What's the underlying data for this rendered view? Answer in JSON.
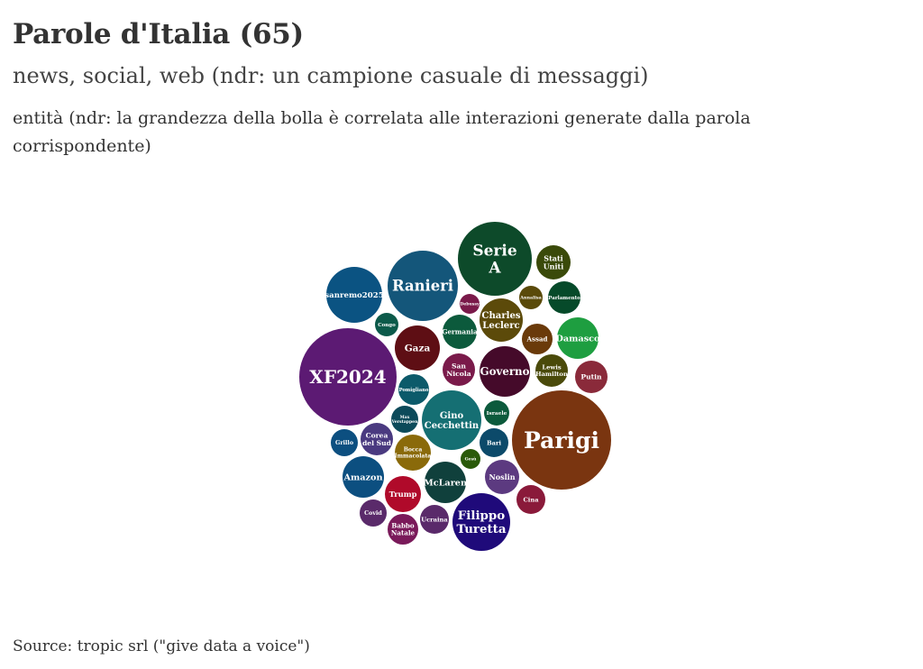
{
  "title": "Parole d'Italia (65)",
  "subtitle": "news, social, web (ndr: un campione casuale di messaggi)",
  "description": "entità (ndr: la grandezza della bolla è correlata alle interazioni generate dalla parola corrispondente)",
  "source": "Source: tropic srl (\"give data a voice\")",
  "chart_data": {
    "type": "bubble",
    "bubbles": [
      {
        "label": "Parigi",
        "size": 55,
        "color": "#7a3510"
      },
      {
        "label": "XF2024",
        "size": 54,
        "color": "#5c1a73"
      },
      {
        "label": "Ranieri",
        "size": 39,
        "color": "#14567a"
      },
      {
        "label": "Serie A",
        "size": 41,
        "color": "#0d4a2a"
      },
      {
        "label": "sanremo2025",
        "size": 31,
        "color": "#0b5382"
      },
      {
        "label": "Filippo Turetta",
        "size": 32,
        "color": "#1f0a7a"
      },
      {
        "label": "Gino Cecchettin",
        "size": 33,
        "color": "#156f73"
      },
      {
        "label": "Governo",
        "size": 28,
        "color": "#450a2a"
      },
      {
        "label": "Gaza",
        "size": 25,
        "color": "#5e0e14"
      },
      {
        "label": "Charles Leclerc",
        "size": 24,
        "color": "#5c4a0a"
      },
      {
        "label": "Damasco",
        "size": 23,
        "color": "#1e9e40"
      },
      {
        "label": "McLaren",
        "size": 23,
        "color": "#10403c"
      },
      {
        "label": "Amazon",
        "size": 23,
        "color": "#0c4f80"
      },
      {
        "label": "Trump",
        "size": 20,
        "color": "#b00a2a"
      },
      {
        "label": "Germania",
        "size": 19,
        "color": "#0c5a3c"
      },
      {
        "label": "Noslin",
        "size": 19,
        "color": "#5c3a80"
      },
      {
        "label": "Corea del Sud",
        "size": 18,
        "color": "#4a3a80"
      },
      {
        "label": "Parlamento",
        "size": 18,
        "color": "#064a2a"
      },
      {
        "label": "Stati Uniti",
        "size": 19,
        "color": "#3a4a0a"
      },
      {
        "label": "Putin",
        "size": 18,
        "color": "#8a2a3a"
      },
      {
        "label": "San Nicola",
        "size": 18,
        "color": "#7a1a4a"
      },
      {
        "label": "Lewis Hamilton",
        "size": 18,
        "color": "#4a4a0a"
      },
      {
        "label": "Bari",
        "size": 16,
        "color": "#0c4a6a"
      },
      {
        "label": "Cina",
        "size": 16,
        "color": "#8a1a3a"
      },
      {
        "label": "Babbo Natale",
        "size": 17,
        "color": "#7a1a5a"
      },
      {
        "label": "Assad",
        "size": 17,
        "color": "#6a3a0a"
      },
      {
        "label": "Pomigliano",
        "size": 17,
        "color": "#0c5a6a"
      },
      {
        "label": "Ucraina",
        "size": 16,
        "color": "#5a2a6a"
      },
      {
        "label": "Grillo",
        "size": 15,
        "color": "#0c4f80"
      },
      {
        "label": "Covid",
        "size": 15,
        "color": "#5a2a6a"
      },
      {
        "label": "Bocca Immacolata",
        "size": 20,
        "color": "#8a6a0a"
      },
      {
        "label": "Annalisa",
        "size": 13,
        "color": "#5a4a0a"
      },
      {
        "label": "Congo",
        "size": 13,
        "color": "#0c5a4a"
      },
      {
        "label": "Max Verstappen",
        "size": 15,
        "color": "#0c4a5a"
      },
      {
        "label": "Israele",
        "size": 14,
        "color": "#0c5a3c"
      },
      {
        "label": "Gesù",
        "size": 11,
        "color": "#2a5a0a"
      },
      {
        "label": "Debussy",
        "size": 11,
        "color": "#7a1a4a"
      }
    ]
  }
}
